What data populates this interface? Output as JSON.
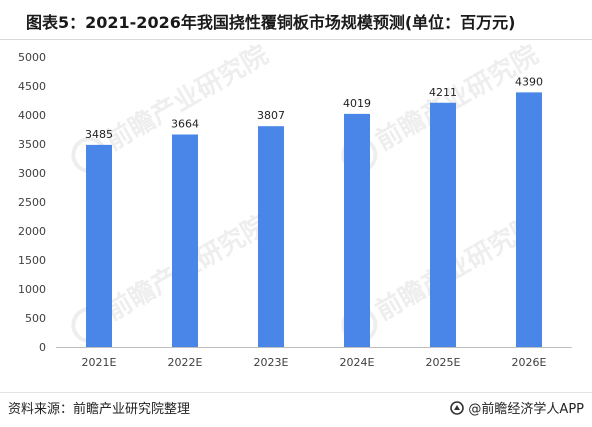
{
  "title": "图表5：2021-2026年我国挠性覆铜板市场规模预测(单位：百万元)",
  "footer": {
    "source": "资料来源：前瞻产业研究院整理",
    "brand": "@前瞻经济学人APP"
  },
  "watermark": "前瞻产业研究院",
  "chart_data": {
    "type": "bar",
    "categories": [
      "2021E",
      "2022E",
      "2023E",
      "2024E",
      "2025E",
      "2026E"
    ],
    "values": [
      3485,
      3664,
      3807,
      4019,
      4211,
      4390
    ],
    "ylim": [
      0,
      5000
    ],
    "yticks": [
      0,
      500,
      1000,
      1500,
      2000,
      2500,
      3000,
      3500,
      4000,
      4500,
      5000
    ],
    "grid": false,
    "legend": "none",
    "colors": {
      "bar": "#4a86e8",
      "axis": "#bfbfbf",
      "text": "#404040"
    }
  }
}
